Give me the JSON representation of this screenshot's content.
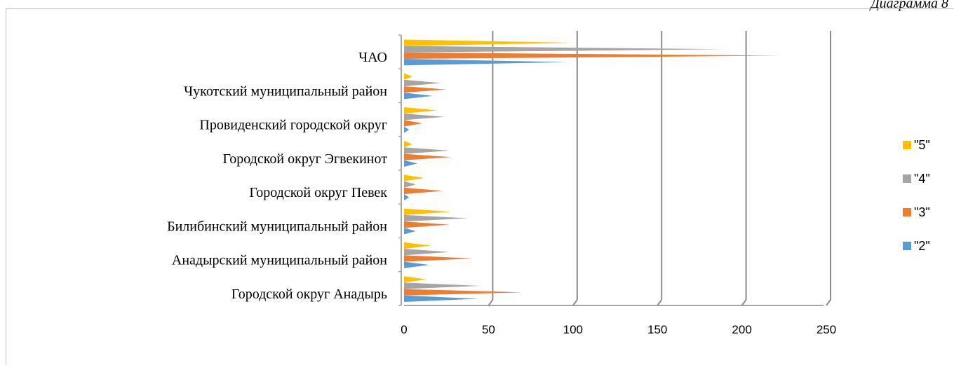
{
  "page_label": "Диаграмма 8",
  "chart_data": {
    "type": "bar",
    "orientation": "horizontal",
    "categories": [
      "Городской округ Анадырь",
      "Анадырский муниципальный район",
      "Билибинский муниципальный район",
      "Городской округ Певек",
      "Городской округ Эгвекинот",
      "Провиденский городской округ",
      "Чукотский муниципальный район",
      "ЧАО"
    ],
    "series": [
      {
        "name": "\"2\"",
        "color": "#5b9bd5",
        "values": [
          44,
          15,
          7,
          3,
          8,
          3,
          17,
          97
        ]
      },
      {
        "name": "\"3\"",
        "color": "#ed7d31",
        "values": [
          70,
          41,
          27,
          23,
          28,
          11,
          25,
          223
        ]
      },
      {
        "name": "\"4\"",
        "color": "#a5a5a5",
        "values": [
          45,
          27,
          38,
          7,
          27,
          24,
          22,
          190
        ]
      },
      {
        "name": "\"5\"",
        "color": "#ffc000",
        "values": [
          13,
          16,
          28,
          12,
          5,
          20,
          5,
          100
        ]
      }
    ],
    "xlim": [
      0,
      250
    ],
    "xticks": [
      "0",
      "50",
      "100",
      "150",
      "200",
      "250"
    ],
    "grid": true,
    "legend_position": "right",
    "legend_order": [
      "\"5\"",
      "\"4\"",
      "\"3\"",
      "\"2\""
    ]
  }
}
